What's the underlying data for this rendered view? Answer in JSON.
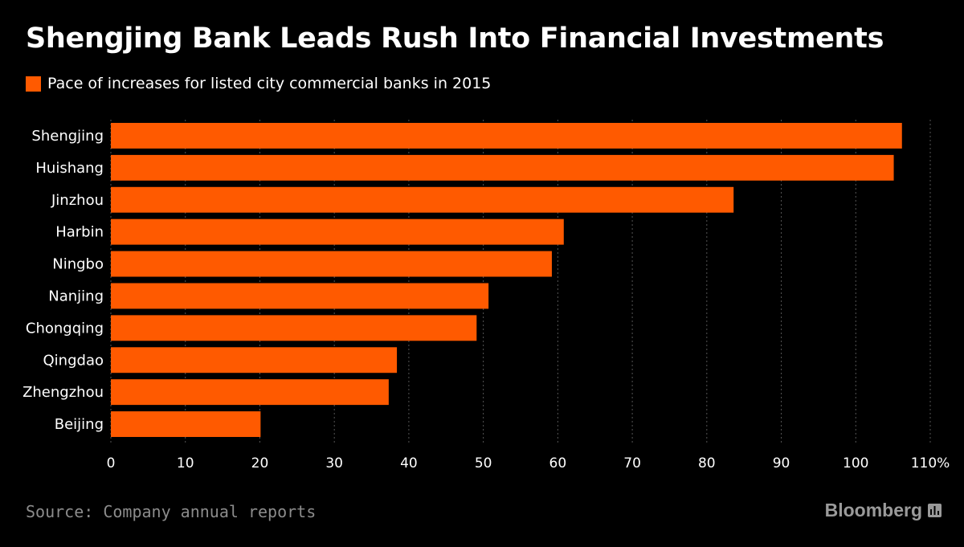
{
  "chart_data": {
    "type": "bar",
    "orientation": "horizontal",
    "title": "Shengjing Bank Leads Rush Into Financial Investments",
    "legend": {
      "label": "Pace of increases for listed city commercial banks in 2015",
      "position": "top-left"
    },
    "categories": [
      "Shengjing",
      "Huishang",
      "Jinzhou",
      "Harbin",
      "Ningbo",
      "Nanjing",
      "Chongqing",
      "Qingdao",
      "Zhengzhou",
      "Beijing"
    ],
    "values": [
      106.2,
      105.1,
      83.6,
      60.8,
      59.2,
      50.7,
      49.1,
      38.4,
      37.3,
      20.1
    ],
    "xlim": [
      0,
      110
    ],
    "xticks": [
      0,
      10,
      20,
      30,
      40,
      50,
      60,
      70,
      80,
      90,
      100,
      110
    ],
    "xtick_labels": [
      "0",
      "10",
      "20",
      "30",
      "40",
      "50",
      "60",
      "70",
      "80",
      "90",
      "100",
      "110%"
    ],
    "grid": true,
    "colors": {
      "bar": "#ff5a00",
      "background": "#000000",
      "grid": "#555555",
      "text": "#ffffff"
    }
  },
  "footer": {
    "source": "Source: Company annual reports",
    "brand": "Bloomberg"
  },
  "icons": {
    "brand": "bloomberg-chart-icon"
  }
}
